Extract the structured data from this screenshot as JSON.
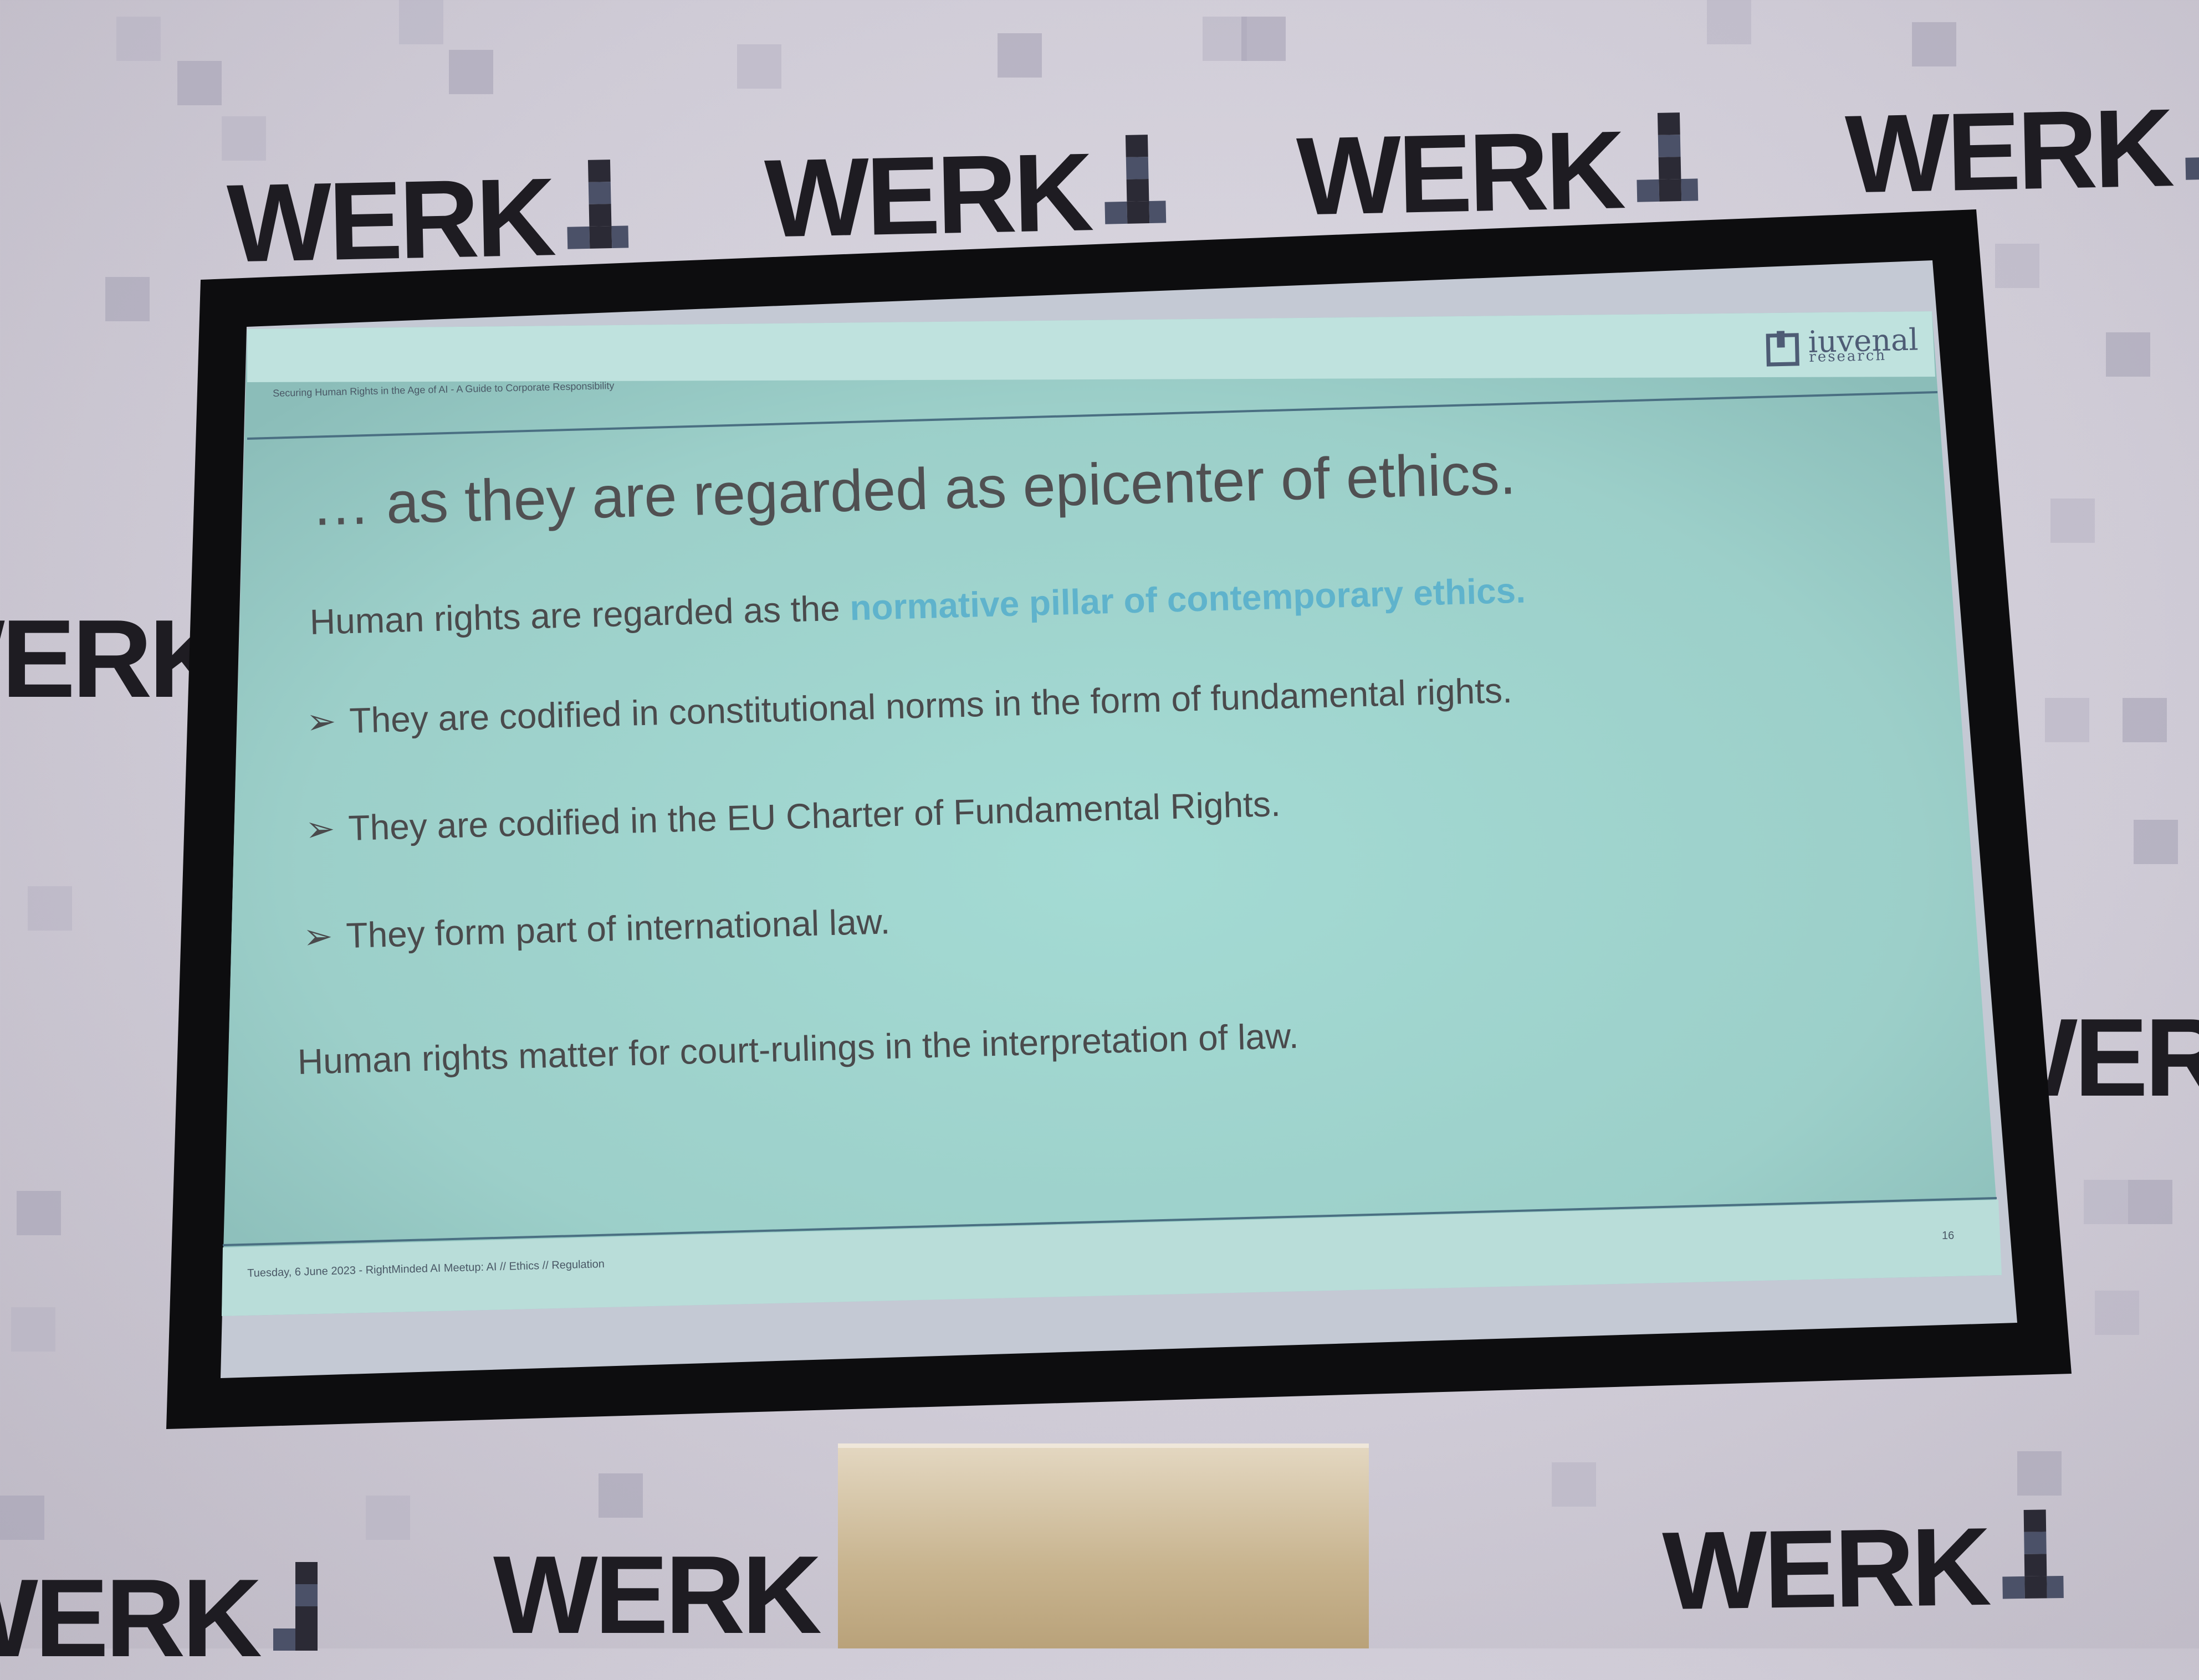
{
  "backdrop": {
    "brand_word": "WERK",
    "brand_one": "1"
  },
  "slide": {
    "header_subtitle": "Securing Human Rights in the Age of AI - A Guide to Corporate Responsibility",
    "logo_name": "iuvenal",
    "logo_sub": "research",
    "title": "… as they are regarded as epicenter of ethics.",
    "intro_prefix": "Human rights are regarded as the ",
    "intro_highlight": "normative pillar of contemporary ethics.",
    "bullet_icon": "arrow-bullet-icon",
    "bullet_glyph": "➢",
    "bullets": [
      "They are codified in constitutional norms in the form of fundamental rights.",
      "They are codified in the EU Charter of Fundamental Rights.",
      "They form part of international law."
    ],
    "closing": "Human rights matter for court-rulings in the interpretation of law.",
    "footer": "Tuesday, 6 June 2023 - RightMinded AI Meetup: AI // Ethics // Regulation",
    "page_number": "16"
  },
  "colors": {
    "slide_bg": "#a9d6d2",
    "accent": "#5fb3cc",
    "frame": "#0d0d0f",
    "brand_dark": "#1e1c22"
  }
}
